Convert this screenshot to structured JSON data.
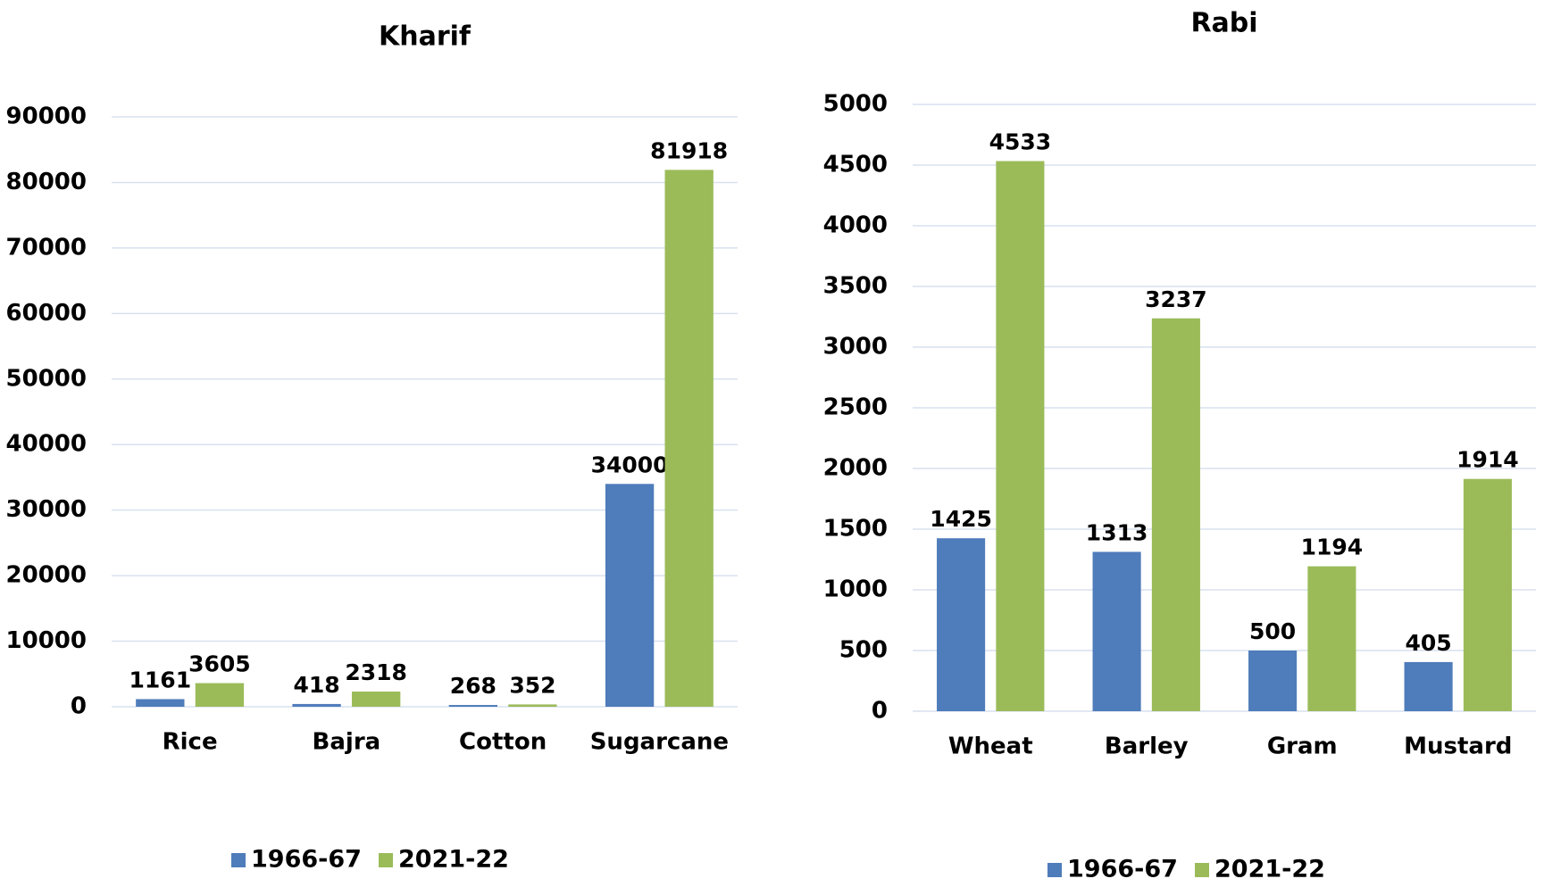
{
  "chart_data": [
    {
      "type": "bar",
      "title": "Kharif",
      "categories": [
        "Rice",
        "Bajra",
        "Cotton",
        "Sugarcane"
      ],
      "series": [
        {
          "name": "1966-67",
          "color": "#4f7cba",
          "values": [
            1161,
            418,
            268,
            34000
          ]
        },
        {
          "name": "2021-22",
          "color": "#9bbb59",
          "values": [
            3605,
            2318,
            352,
            81918
          ]
        }
      ],
      "ylim": [
        0,
        90000
      ],
      "yticks": [
        0,
        10000,
        20000,
        30000,
        40000,
        50000,
        60000,
        70000,
        80000,
        90000
      ],
      "grid": true,
      "legend": "bottom"
    },
    {
      "type": "bar",
      "title": "Rabi",
      "categories": [
        "Wheat",
        "Barley",
        "Gram",
        "Mustard"
      ],
      "series": [
        {
          "name": "1966-67",
          "color": "#4f7cba",
          "values": [
            1425,
            1313,
            500,
            405
          ]
        },
        {
          "name": "2021-22",
          "color": "#9bbb59",
          "values": [
            4533,
            3237,
            1194,
            1914
          ]
        }
      ],
      "ylim": [
        0,
        5000
      ],
      "yticks": [
        0,
        500,
        1000,
        1500,
        2000,
        2500,
        3000,
        3500,
        4000,
        4500,
        5000
      ],
      "grid": true,
      "legend": "bottom"
    }
  ]
}
